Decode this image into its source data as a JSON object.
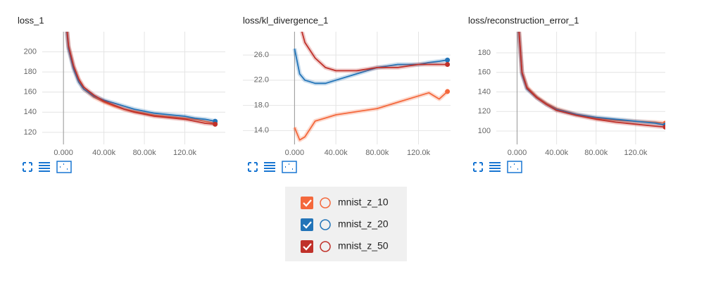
{
  "chart_data": [
    {
      "type": "line",
      "title": "loss_1",
      "x": [
        0,
        5000,
        10000,
        15000,
        20000,
        30000,
        40000,
        50000,
        60000,
        70000,
        80000,
        90000,
        100000,
        110000,
        120000,
        130000,
        140000,
        150000
      ],
      "series": [
        {
          "name": "mnist_z_10",
          "color": "#f4683c",
          "values": [
            260,
            205,
            185,
            172,
            163,
            155,
            150,
            146,
            143,
            141,
            139,
            137,
            136,
            135,
            134,
            133,
            131,
            129
          ]
        },
        {
          "name": "mnist_z_20",
          "color": "#2274b8",
          "values": [
            255,
            203,
            183,
            170,
            163,
            156,
            152,
            149,
            146,
            143,
            141,
            139,
            138,
            137,
            136,
            134,
            133,
            131
          ]
        },
        {
          "name": "mnist_z_50",
          "color": "#c0312a",
          "values": [
            258,
            206,
            186,
            173,
            165,
            157,
            151,
            147,
            143,
            140,
            138,
            136,
            135,
            134,
            133,
            131,
            129,
            128
          ]
        }
      ],
      "xlim": [
        -21000,
        160000
      ],
      "ylim": [
        108,
        220
      ],
      "xticks": [
        {
          "value": 0,
          "label": "0.000"
        },
        {
          "value": 40000,
          "label": "40.00k"
        },
        {
          "value": 80000,
          "label": "80.00k"
        },
        {
          "value": 120000,
          "label": "120.0k"
        }
      ],
      "yticks": [
        120,
        140,
        160,
        180,
        200
      ],
      "grid": true
    },
    {
      "type": "line",
      "title": "loss/kl_divergence_1",
      "x": [
        0,
        5000,
        10000,
        20000,
        30000,
        40000,
        60000,
        80000,
        100000,
        120000,
        130000,
        140000,
        148000
      ],
      "series": [
        {
          "name": "mnist_z_10",
          "color": "#f4683c",
          "values": [
            14.5,
            12.5,
            13,
            15.5,
            16,
            16.5,
            17,
            17.5,
            18.5,
            19.5,
            20,
            19,
            20.2
          ]
        },
        {
          "name": "mnist_z_20",
          "color": "#2274b8",
          "values": [
            27,
            23,
            22,
            21.5,
            21.5,
            22,
            23,
            24,
            24.5,
            24.5,
            24.8,
            25,
            25.2
          ]
        },
        {
          "name": "mnist_z_50",
          "color": "#c0312a",
          "values": [
            35,
            31,
            28,
            25.5,
            24,
            23.5,
            23.5,
            24,
            24,
            24.5,
            24.5,
            24.5,
            24.5
          ]
        }
      ],
      "xlim": [
        -50000,
        151000
      ],
      "ylim": [
        11.8,
        29.7
      ],
      "xticks": [
        {
          "value": 0,
          "label": "0.000"
        },
        {
          "value": 40000,
          "label": "40.00k"
        },
        {
          "value": 80000,
          "label": "80.00k"
        },
        {
          "value": 120000,
          "label": "120.0k"
        }
      ],
      "yticks": [
        {
          "value": 14,
          "label": "14.0"
        },
        {
          "value": 18,
          "label": "18.0"
        },
        {
          "value": 22,
          "label": "22.0"
        },
        {
          "value": 26,
          "label": "26.0"
        }
      ],
      "grid": true
    },
    {
      "type": "line",
      "title": "loss/reconstruction_error_1",
      "x": [
        0,
        5000,
        10000,
        20000,
        30000,
        40000,
        60000,
        80000,
        100000,
        120000,
        140000,
        150000
      ],
      "series": [
        {
          "name": "mnist_z_10",
          "color": "#f4683c",
          "values": [
            230,
            160,
            145,
            135,
            128,
            123,
            117,
            113,
            111,
            110,
            109,
            108
          ]
        },
        {
          "name": "mnist_z_20",
          "color": "#2274b8",
          "values": [
            225,
            158,
            143,
            134,
            127,
            122,
            117,
            114,
            112,
            110,
            108,
            106
          ]
        },
        {
          "name": "mnist_z_50",
          "color": "#c0312a",
          "values": [
            228,
            160,
            144,
            134,
            127,
            121,
            116,
            112,
            109,
            107,
            105,
            104
          ]
        }
      ],
      "xlim": [
        -21000,
        150000
      ],
      "ylim": [
        86.3,
        201.6
      ],
      "xticks": [
        {
          "value": 0,
          "label": "0.000"
        },
        {
          "value": 40000,
          "label": "40.00k"
        },
        {
          "value": 80000,
          "label": "80.00k"
        },
        {
          "value": 120000,
          "label": "120.0k"
        }
      ],
      "yticks": [
        100,
        120,
        140,
        160,
        180
      ],
      "grid": true
    }
  ]
}
